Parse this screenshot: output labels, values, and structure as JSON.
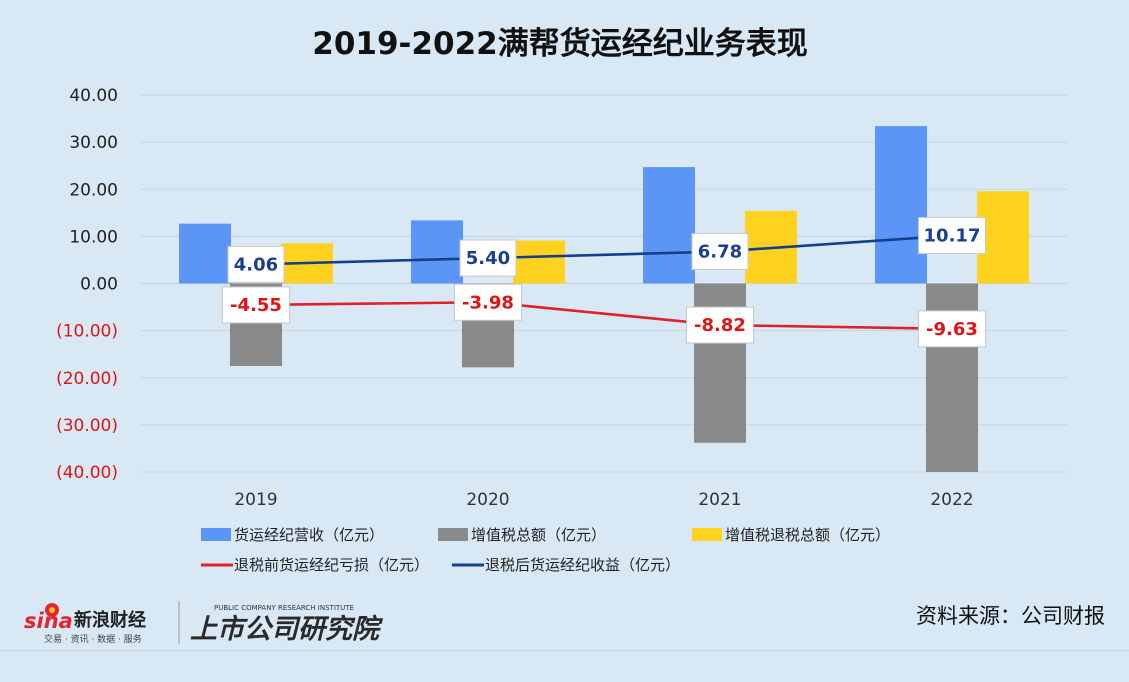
{
  "chart_data": {
    "type": "bar",
    "title": "2019-2022满帮货运经纪业务表现",
    "categories": [
      "2019",
      "2020",
      "2021",
      "2022"
    ],
    "ylim": [
      -40,
      40
    ],
    "yticks": [
      40,
      30,
      20,
      10,
      0,
      -10,
      -20,
      -30,
      -40
    ],
    "ytick_labels": [
      "40.00",
      "30.00",
      "20.00",
      "10.00",
      "0.00",
      "(10.00)",
      "(20.00)",
      "(30.00)",
      "(40.00)"
    ],
    "grid": true,
    "bar_series": [
      {
        "name": "货运经纪营收（亿元）",
        "values": [
          12.7,
          13.4,
          24.7,
          33.4
        ],
        "color": "#5b95f5"
      },
      {
        "name": "增值税总额（亿元）",
        "values": [
          -17.5,
          -17.8,
          -33.8,
          -40.0
        ],
        "color": "#8a8a8a"
      },
      {
        "name": "增值税退税总额（亿元）",
        "values": [
          8.5,
          9.1,
          15.4,
          19.6
        ],
        "color": "#ffd21f"
      }
    ],
    "line_series": [
      {
        "name": "退税前货运经纪亏损（亿元）",
        "values": [
          -4.55,
          -3.98,
          -8.82,
          -9.63
        ],
        "labels": [
          "-4.55",
          "-3.98",
          "-8.82",
          "-9.63"
        ],
        "color": "#e0202a",
        "label_color": "#e01414"
      },
      {
        "name": "退税后货运经纪收益（亿元）",
        "values": [
          4.06,
          5.4,
          6.78,
          10.17
        ],
        "labels": [
          "4.06",
          "5.40",
          "6.78",
          "10.17"
        ],
        "color": "#143f8c",
        "label_color": "#1a3f8c"
      }
    ],
    "positive_tick_color": "#222222",
    "negative_tick_color": "#e01414"
  },
  "footer": {
    "source": "资料来源：公司财报",
    "sina_logo": "sina",
    "sina_name": "新浪财经",
    "sina_tags": "交易 · 资讯 · 数据 · 服务",
    "institute_name": "上市公司研究院",
    "institute_en": "PUBLIC COMPANY RESEARCH INSTITUTE"
  }
}
